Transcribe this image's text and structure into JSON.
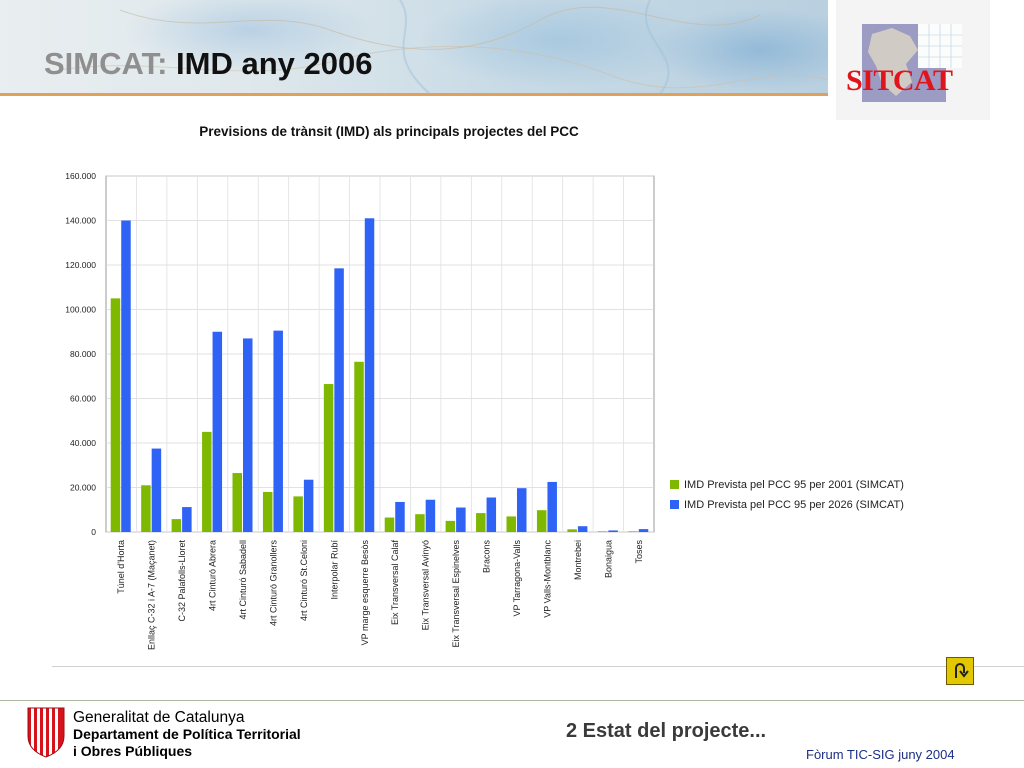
{
  "header": {
    "title_prefix": "SIMCAT:",
    "title_main": "IMD any 2006"
  },
  "logo": {
    "text": "SITCAT"
  },
  "chart_data": {
    "type": "bar",
    "title": "Previsions de trànsit (IMD) als principals projectes del PCC",
    "xlabel": "",
    "ylabel": "",
    "ylim": [
      0,
      160000
    ],
    "yticks": [
      "0",
      "20.000",
      "40.000",
      "60.000",
      "80.000",
      "100.000",
      "120.000",
      "140.000",
      "160.000"
    ],
    "grid": true,
    "legend_position": "right",
    "categories": [
      "Túnel d'Horta",
      "Enllaç C-32 i A-7 (Maçanet)",
      "C-32 Palafolls-Lloret",
      "4rt Cinturó Abrera",
      "4rt Cinturó Sabadell",
      "4rt Cinturó Granollers",
      "4rt Cinturó St.Celoni",
      "Interpolar Rubí",
      "VP marge esquerre Besòs",
      "Eix Transversal Calaf",
      "Eix Transversal Avinyó",
      "Eix Transversal Espinelves",
      "Bracons",
      "VP Tarragona-Valls",
      "VP Valls-Montblanc",
      "Montrebei",
      "Bonaigua",
      "Toses"
    ],
    "series": [
      {
        "name": "IMD Prevista pel PCC 95 per 2001 (SIMCAT)",
        "color": "#7fb800",
        "values": [
          105000,
          21000,
          5800,
          45000,
          26500,
          18000,
          16000,
          66500,
          76500,
          6500,
          8000,
          5000,
          8500,
          7000,
          9800,
          1200,
          300,
          300
        ]
      },
      {
        "name": "IMD Prevista pel PCC 95 per 2026 (SIMCAT)",
        "color": "#2f63f5",
        "values": [
          140000,
          37500,
          11200,
          90000,
          87000,
          90500,
          23500,
          118500,
          141000,
          13500,
          14500,
          11000,
          15500,
          19700,
          22500,
          2600,
          700,
          1300
        ]
      }
    ]
  },
  "footer": {
    "org_line1": "Generalitat de Catalunya",
    "org_line2": "Departament de Política Territorial",
    "org_line3": "i Obres Públiques",
    "subtitle": "2 Estat del projecte...",
    "note": "Fòrum TIC-SIG juny 2004"
  },
  "icons": {
    "back": "u-turn-arrow-icon",
    "shield": "senyera-shield-icon"
  },
  "colors": {
    "accent_rule": "#e2a15a",
    "logo_red": "#e0151b",
    "note_blue": "#1b2f86",
    "button_yellow": "#e2c800"
  }
}
